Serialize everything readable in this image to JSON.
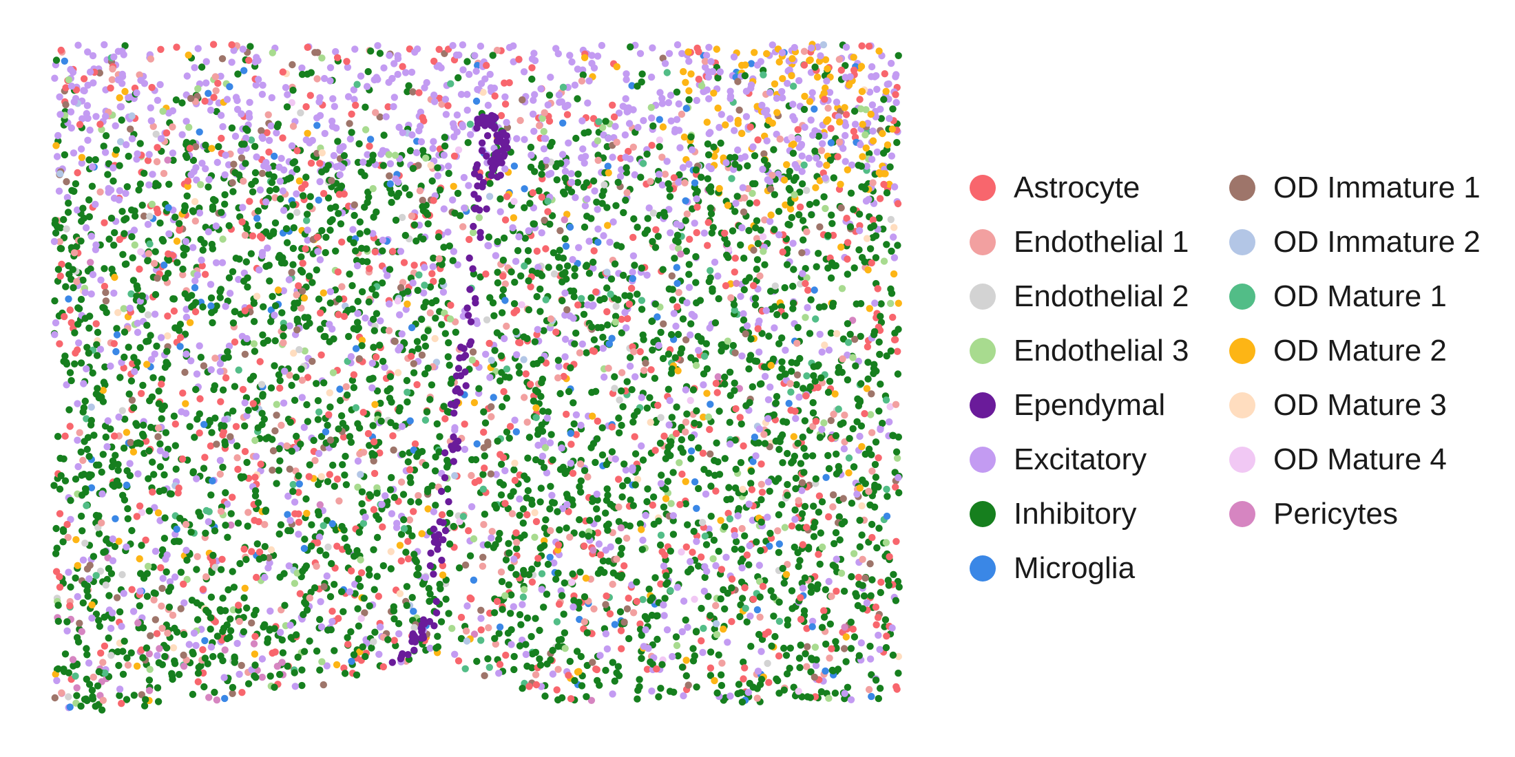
{
  "chart_data": {
    "type": "scatter",
    "title": "",
    "xlabel": "",
    "ylabel": "",
    "axes_visible": false,
    "grid": false,
    "legend_position": "right",
    "legend_columns": 2,
    "xlim": [
      0,
      100
    ],
    "ylim": [
      0,
      80
    ],
    "series": [
      {
        "name": "Astrocyte",
        "color": "#F8666D",
        "count": 720,
        "pattern": "uniform"
      },
      {
        "name": "Endothelial 1",
        "color": "#F2A0A0",
        "count": 280,
        "pattern": "uniform"
      },
      {
        "name": "Endothelial 2",
        "color": "#D3D3D3",
        "count": 60,
        "pattern": "uniform"
      },
      {
        "name": "Endothelial 3",
        "color": "#A8DB8F",
        "count": 140,
        "pattern": "uniform"
      },
      {
        "name": "Ependymal",
        "color": "#6A1B9A",
        "count": 170,
        "pattern": "central-canal"
      },
      {
        "name": "Excitatory",
        "color": "#C39BF2",
        "count": 1250,
        "pattern": "dorsal"
      },
      {
        "name": "Inhibitory",
        "color": "#167F1E",
        "count": 2700,
        "pattern": "grey-matter"
      },
      {
        "name": "Microglia",
        "color": "#3A87E6",
        "count": 140,
        "pattern": "uniform"
      },
      {
        "name": "OD Immature 1",
        "color": "#9E756A",
        "count": 180,
        "pattern": "uniform"
      },
      {
        "name": "OD Immature 2",
        "color": "#B3C6E6",
        "count": 30,
        "pattern": "uniform"
      },
      {
        "name": "OD Mature 1",
        "color": "#52BD87",
        "count": 110,
        "pattern": "uniform"
      },
      {
        "name": "OD Mature 2",
        "color": "#FDB515",
        "count": 230,
        "pattern": "upper-right"
      },
      {
        "name": "OD Mature 3",
        "color": "#FFDDBF",
        "count": 40,
        "pattern": "uniform"
      },
      {
        "name": "OD Mature 4",
        "color": "#F1C8F4",
        "count": 25,
        "pattern": "uniform"
      },
      {
        "name": "Pericytes",
        "color": "#D685C1",
        "count": 45,
        "pattern": "lower-left"
      }
    ]
  }
}
